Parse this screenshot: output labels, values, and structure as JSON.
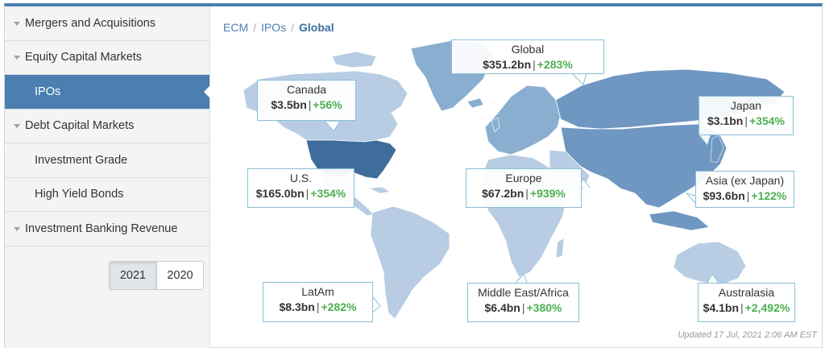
{
  "sidebar": {
    "items": [
      {
        "label": "Mergers and Acquisitions",
        "type": "parent"
      },
      {
        "label": "Equity Capital Markets",
        "type": "parent"
      },
      {
        "label": "IPOs",
        "type": "child",
        "active": true
      },
      {
        "label": "Debt Capital Markets",
        "type": "parent"
      },
      {
        "label": "Investment Grade",
        "type": "child"
      },
      {
        "label": "High Yield Bonds",
        "type": "child"
      },
      {
        "label": "Investment Banking Revenue",
        "type": "parent"
      }
    ],
    "years": [
      "2021",
      "2020"
    ],
    "selected_year": "2021"
  },
  "breadcrumb": {
    "items": [
      "ECM",
      "IPOs"
    ],
    "current": "Global"
  },
  "regions": {
    "global": {
      "name": "Global",
      "value": "$351.2bn",
      "change": "+283%"
    },
    "canada": {
      "name": "Canada",
      "value": "$3.5bn",
      "change": "+56%"
    },
    "japan": {
      "name": "Japan",
      "value": "$3.1bn",
      "change": "+354%"
    },
    "us": {
      "name": "U.S.",
      "value": "$165.0bn",
      "change": "+354%"
    },
    "europe": {
      "name": "Europe",
      "value": "$67.2bn",
      "change": "+939%"
    },
    "asia": {
      "name": "Asia (ex Japan)",
      "value": "$93.6bn",
      "change": "+122%"
    },
    "latam": {
      "name": "LatAm",
      "value": "$8.3bn",
      "change": "+282%"
    },
    "mideast": {
      "name": "Middle East/Africa",
      "value": "$6.4bn",
      "change": "+380%"
    },
    "australasia": {
      "name": "Australasia",
      "value": "$4.1bn",
      "change": "+2,492%"
    }
  },
  "updated": "Updated 17 Jul, 2021 2:06 AM EST",
  "colors": {
    "accent": "#4a7fb0",
    "positive": "#4caf50",
    "us_highlight": "#3e6d9c",
    "land_mid": "#7fa3c9",
    "land_light": "#b8cde3"
  }
}
